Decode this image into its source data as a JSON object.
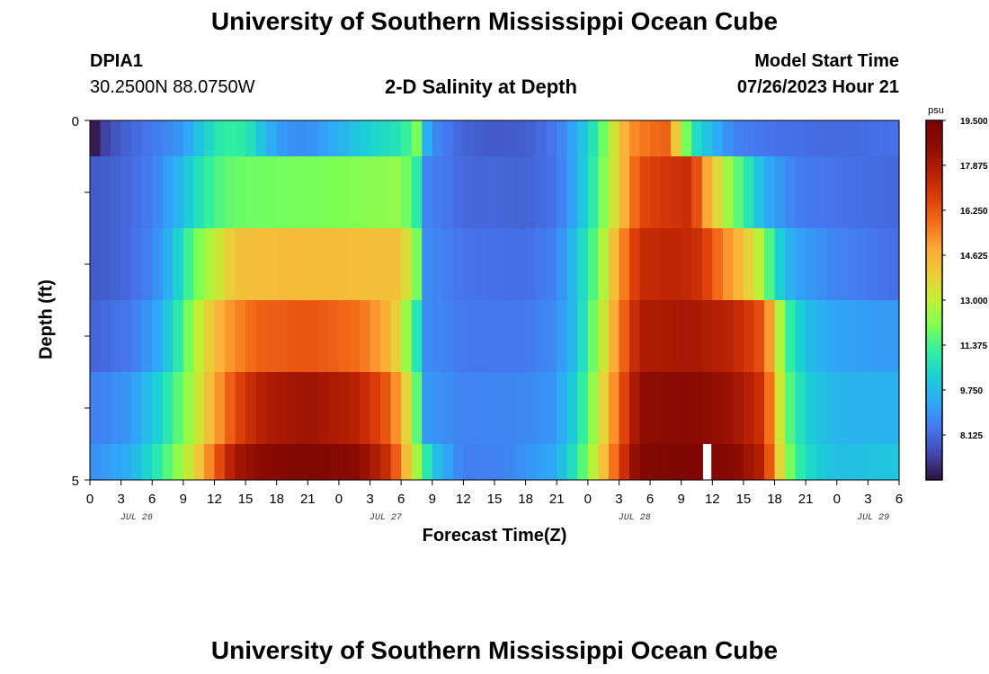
{
  "page": {
    "title_top": "University of Southern Mississippi Ocean Cube",
    "title_bottom": "University of Southern Mississippi Ocean Cube",
    "station": "DPIA1",
    "coords": "30.2500N  88.0750W",
    "model_start_label": "Model Start Time",
    "model_start_value": "07/26/2023 Hour 21"
  },
  "chart_data": {
    "type": "heatmap",
    "title": "2-D Salinity at Depth",
    "xlabel": "Forecast Time(Z)",
    "ylabel": "Depth (ft)",
    "x_tick_labels": [
      "0",
      "3",
      "6",
      "9",
      "12",
      "15",
      "18",
      "21",
      "0",
      "3",
      "6",
      "9",
      "12",
      "15",
      "18",
      "21",
      "0",
      "3",
      "6",
      "9",
      "12",
      "15",
      "18",
      "21",
      "0",
      "3",
      "6"
    ],
    "date_labels": [
      {
        "text": "JUL 26",
        "at_hour": 4.5
      },
      {
        "text": "JUL 27",
        "at_hour": 28.5
      },
      {
        "text": "JUL 28",
        "at_hour": 52.5
      },
      {
        "text": "JUL 29",
        "at_hour": 75.5
      }
    ],
    "x_range_hours": [
      0,
      78
    ],
    "y_range_ft": [
      0,
      5
    ],
    "y_tick_labels": [
      "0",
      "5"
    ],
    "colorbar": {
      "unit": "psu",
      "min": 6.5,
      "max": 19.5,
      "tick_values": [
        19.5,
        17.875,
        16.25,
        14.625,
        13.0,
        11.375,
        9.75,
        8.125
      ],
      "tick_labels": [
        "19.500",
        "17.875",
        "16.250",
        "14.625",
        "13.000",
        "11.375",
        "9.750",
        "8.125"
      ],
      "colors": [
        "#30123b",
        "#4146ac",
        "#4676ee",
        "#2fa7f8",
        "#1bd0d5",
        "#31efa0",
        "#7dff55",
        "#c0f033",
        "#eccc3a",
        "#feaa37",
        "#f46e19",
        "#db3e0a",
        "#b51f04",
        "#8c0c02",
        "#7a0403"
      ]
    },
    "depth_layers_ft": [
      {
        "range": [
          0.0,
          0.5
        ],
        "keys": [
          [
            0,
            6.6
          ],
          [
            0.4,
            6.6
          ],
          [
            1,
            7.2
          ],
          [
            3,
            7.9
          ],
          [
            6,
            8.4
          ],
          [
            9,
            9.0
          ],
          [
            11,
            10.2
          ],
          [
            13,
            11.2
          ],
          [
            15,
            11.0
          ],
          [
            17,
            9.6
          ],
          [
            19,
            8.9
          ],
          [
            21,
            8.8
          ],
          [
            24,
            9.5
          ],
          [
            27,
            10.3
          ],
          [
            30,
            10.8
          ],
          [
            31.5,
            12.0
          ],
          [
            32.5,
            9.5
          ],
          [
            33,
            8.8
          ],
          [
            36,
            8.0
          ],
          [
            39,
            7.8
          ],
          [
            42,
            7.9
          ],
          [
            45,
            8.4
          ],
          [
            47,
            9.5
          ],
          [
            49,
            11.2
          ],
          [
            51,
            14.0
          ],
          [
            52,
            15.2
          ],
          [
            54,
            15.8
          ],
          [
            55.5,
            16.0
          ],
          [
            56.5,
            14.0
          ],
          [
            57.5,
            12.0
          ],
          [
            58.5,
            10.5
          ],
          [
            60,
            9.6
          ],
          [
            62,
            8.6
          ],
          [
            66,
            8.3
          ],
          [
            72,
            8.1
          ],
          [
            78,
            8.3
          ]
        ]
      },
      {
        "range": [
          0.5,
          1.5
        ],
        "keys": [
          [
            0,
            7.8
          ],
          [
            3,
            8.0
          ],
          [
            6,
            8.5
          ],
          [
            9,
            9.8
          ],
          [
            11,
            11.0
          ],
          [
            13,
            11.7
          ],
          [
            15,
            11.9
          ],
          [
            21,
            12.0
          ],
          [
            27,
            12.2
          ],
          [
            30,
            12.4
          ],
          [
            31.5,
            11.0
          ],
          [
            32.5,
            8.6
          ],
          [
            36,
            8.1
          ],
          [
            42,
            8.0
          ],
          [
            45,
            8.3
          ],
          [
            47,
            9.5
          ],
          [
            49,
            11.5
          ],
          [
            51,
            14.0
          ],
          [
            53,
            16.5
          ],
          [
            56,
            17.0
          ],
          [
            58,
            17.2
          ],
          [
            59,
            15.5
          ],
          [
            61,
            13.0
          ],
          [
            63,
            11.2
          ],
          [
            65,
            9.5
          ],
          [
            68,
            8.5
          ],
          [
            72,
            8.3
          ],
          [
            78,
            8.1
          ]
        ]
      },
      {
        "range": [
          1.5,
          2.5
        ],
        "keys": [
          [
            0,
            7.8
          ],
          [
            3,
            8.0
          ],
          [
            6,
            8.6
          ],
          [
            8,
            9.8
          ],
          [
            10,
            11.8
          ],
          [
            12,
            13.0
          ],
          [
            14,
            14.2
          ],
          [
            20,
            14.4
          ],
          [
            27,
            14.3
          ],
          [
            30,
            14.2
          ],
          [
            31.5,
            12.0
          ],
          [
            32.5,
            8.8
          ],
          [
            36,
            8.3
          ],
          [
            42,
            8.2
          ],
          [
            45,
            8.6
          ],
          [
            47,
            10.0
          ],
          [
            49,
            12.0
          ],
          [
            51,
            15.0
          ],
          [
            53,
            17.3
          ],
          [
            57,
            17.5
          ],
          [
            59,
            17.0
          ],
          [
            61,
            15.5
          ],
          [
            63,
            14.2
          ],
          [
            65,
            12.5
          ],
          [
            66,
            10.5
          ],
          [
            68,
            9.2
          ],
          [
            72,
            8.6
          ],
          [
            78,
            8.2
          ]
        ]
      },
      {
        "range": [
          2.5,
          3.5
        ],
        "keys": [
          [
            0,
            8.0
          ],
          [
            4,
            8.4
          ],
          [
            7,
            9.5
          ],
          [
            9,
            11.5
          ],
          [
            11,
            13.5
          ],
          [
            13,
            15.0
          ],
          [
            16,
            16.0
          ],
          [
            21,
            16.3
          ],
          [
            26,
            15.8
          ],
          [
            29,
            14.5
          ],
          [
            31,
            11.8
          ],
          [
            32.5,
            8.8
          ],
          [
            36,
            8.4
          ],
          [
            42,
            8.4
          ],
          [
            45,
            8.8
          ],
          [
            47,
            10.0
          ],
          [
            49,
            12.5
          ],
          [
            51,
            15.5
          ],
          [
            53,
            17.8
          ],
          [
            58,
            18.0
          ],
          [
            62,
            17.5
          ],
          [
            65,
            16.2
          ],
          [
            66,
            14.0
          ],
          [
            67,
            11.5
          ],
          [
            69,
            9.8
          ],
          [
            72,
            9.2
          ],
          [
            78,
            9.0
          ]
        ]
      },
      {
        "range": [
          3.5,
          4.5
        ],
        "keys": [
          [
            0,
            8.5
          ],
          [
            4,
            9.0
          ],
          [
            7,
            10.5
          ],
          [
            10,
            12.8
          ],
          [
            12,
            14.8
          ],
          [
            14,
            16.5
          ],
          [
            17,
            17.8
          ],
          [
            21,
            18.2
          ],
          [
            26,
            17.5
          ],
          [
            29,
            16.0
          ],
          [
            31,
            13.0
          ],
          [
            32.5,
            9.0
          ],
          [
            36,
            8.6
          ],
          [
            42,
            8.7
          ],
          [
            45,
            9.0
          ],
          [
            47,
            10.5
          ],
          [
            49,
            13.0
          ],
          [
            51,
            16.0
          ],
          [
            53,
            18.5
          ],
          [
            58,
            18.8
          ],
          [
            62,
            18.2
          ],
          [
            65,
            17.0
          ],
          [
            66,
            14.5
          ],
          [
            67,
            12.0
          ],
          [
            69,
            10.2
          ],
          [
            72,
            9.6
          ],
          [
            78,
            9.5
          ]
        ]
      },
      {
        "range": [
          4.5,
          5.0
        ],
        "keys": [
          [
            0,
            8.8
          ],
          [
            4,
            9.5
          ],
          [
            7,
            11.2
          ],
          [
            10,
            13.5
          ],
          [
            12,
            16.0
          ],
          [
            14,
            18.0
          ],
          [
            17,
            18.8
          ],
          [
            21,
            19.2
          ],
          [
            26,
            18.6
          ],
          [
            29,
            17.0
          ],
          [
            31,
            13.5
          ],
          [
            33,
            10.0
          ],
          [
            36,
            8.5
          ],
          [
            40,
            8.6
          ],
          [
            45,
            9.4
          ],
          [
            47,
            11.0
          ],
          [
            49,
            13.5
          ],
          [
            51,
            16.5
          ],
          [
            53,
            19.0
          ],
          [
            58,
            19.3
          ],
          [
            62,
            18.8
          ],
          [
            65,
            17.5
          ],
          [
            66,
            15.0
          ],
          [
            67,
            12.5
          ],
          [
            69,
            10.5
          ],
          [
            72,
            9.8
          ],
          [
            78,
            10.0
          ]
        ]
      }
    ],
    "missing_cells": [
      {
        "hour": 59.5,
        "depth_range_ft": [
          4.5,
          5.0
        ]
      }
    ]
  }
}
